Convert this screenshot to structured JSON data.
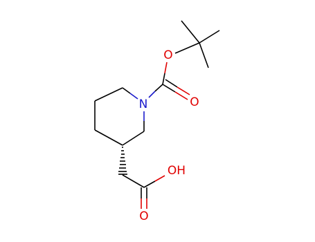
{
  "atoms": {
    "ester_oxygen": "O",
    "carbonyl_oxygen": "O",
    "nitrogen": "N",
    "hydroxyl": "OH",
    "acid_carbonyl_oxygen": "O"
  }
}
